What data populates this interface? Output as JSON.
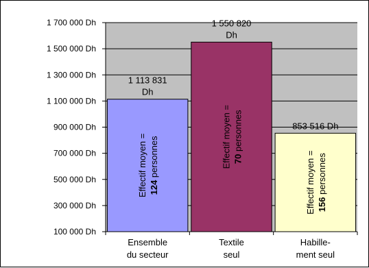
{
  "chart_data": {
    "type": "bar",
    "categories": [
      [
        "Ensemble",
        "du secteur"
      ],
      [
        "Textile",
        "seul"
      ],
      [
        "Habille-",
        "ment seul"
      ]
    ],
    "values": [
      1113831,
      1550820,
      853516
    ],
    "data_labels": [
      [
        "1 113 831",
        "Dh"
      ],
      [
        "1 550 820",
        "Dh"
      ],
      [
        "853 516 Dh"
      ]
    ],
    "bar_annotations": [
      {
        "prefix": "Effectif moyen =",
        "number": "124",
        "suffix": "personnes"
      },
      {
        "prefix": "Effectif moyen =",
        "number": "70",
        "suffix": "personnes"
      },
      {
        "prefix": "Effectif moyen =",
        "number": "156",
        "suffix": "personnes"
      }
    ],
    "bar_colors": [
      "#9999ff",
      "#993366",
      "#ffffcc"
    ],
    "plot_background": "#c0c0c0",
    "yticks": [
      100000,
      300000,
      500000,
      700000,
      900000,
      1100000,
      1300000,
      1500000,
      1700000
    ],
    "ytick_labels": [
      "100 000 Dh",
      "300 000 Dh",
      "500 000 Dh",
      "700 000 Dh",
      "900 000 Dh",
      "1 100 000 Dh",
      "1 300 000 Dh",
      "1 500 000 Dh",
      "1 700 000 Dh"
    ],
    "ylim": [
      100000,
      1700000
    ],
    "grid": true,
    "legend": "none"
  }
}
